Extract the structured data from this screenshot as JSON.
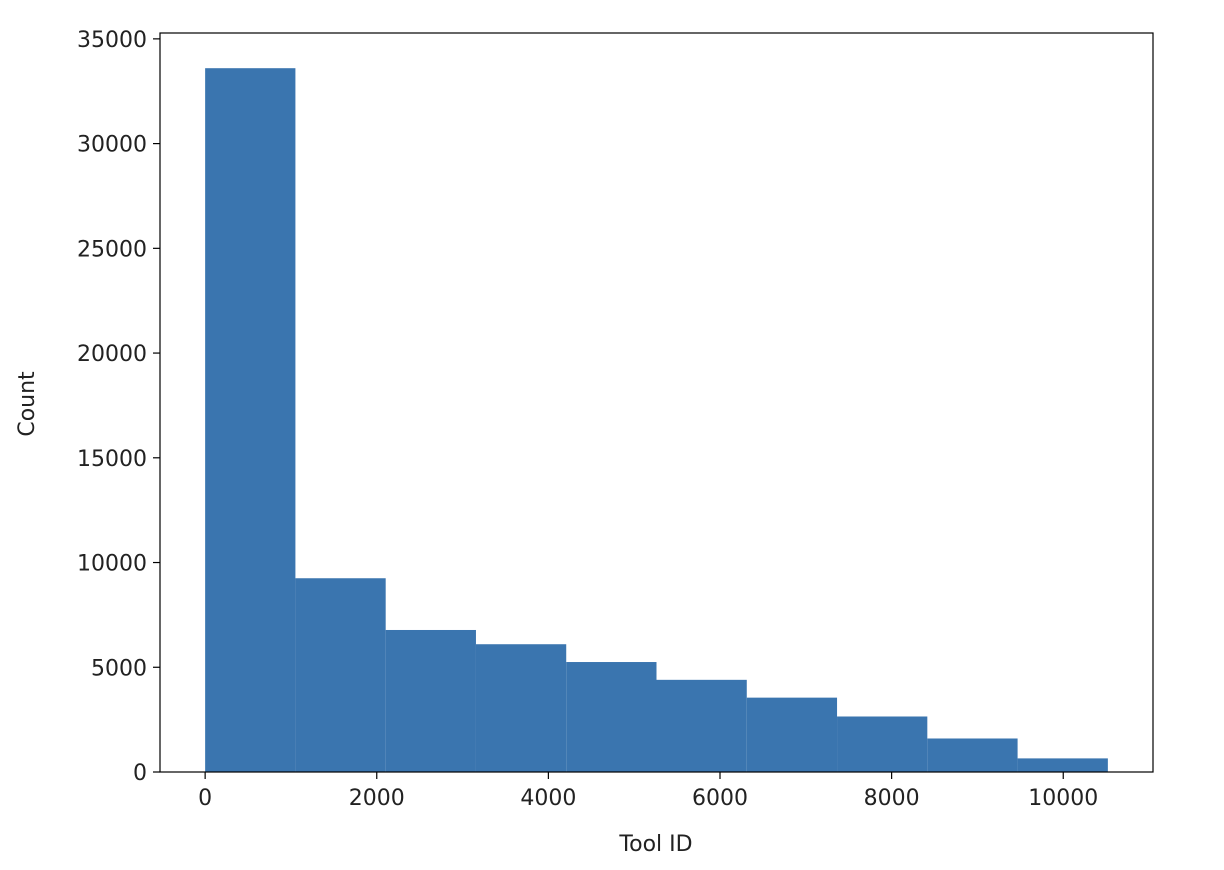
{
  "chart_data": {
    "type": "histogram",
    "x_label": "Tool ID",
    "y_label": "Count",
    "bins": [
      0,
      1052,
      2104,
      3156,
      4208,
      5260,
      6312,
      7364,
      8416,
      9468,
      10520
    ],
    "values": [
      33600,
      9250,
      6780,
      6100,
      5250,
      4400,
      3550,
      2650,
      1600,
      650
    ],
    "color": "#3a75af",
    "xlim": [
      -526,
      11046
    ],
    "ylim": [
      0,
      35280
    ],
    "xticks": [
      0,
      2000,
      4000,
      6000,
      8000,
      10000
    ],
    "yticks": [
      0,
      5000,
      10000,
      15000,
      20000,
      25000,
      30000,
      35000
    ]
  }
}
